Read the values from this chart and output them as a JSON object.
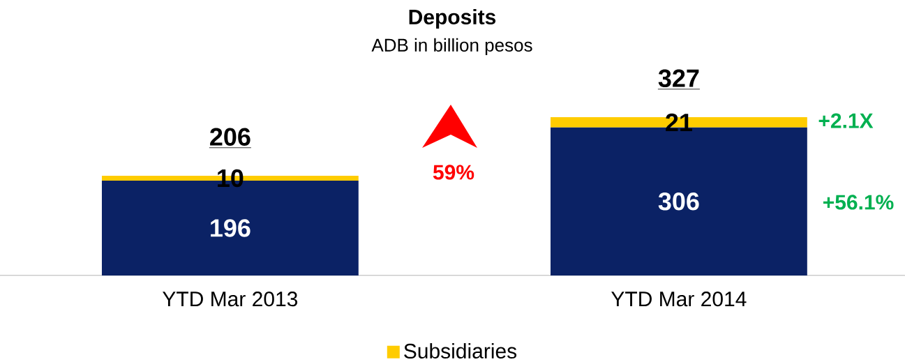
{
  "chart_data": {
    "type": "bar",
    "stacked": true,
    "title": "Deposits",
    "subtitle": "ADB in billion pesos",
    "categories": [
      "YTD Mar 2013",
      "YTD Mar 2014"
    ],
    "series": [
      {
        "color": "#0b2265",
        "values": [
          196,
          306
        ]
      },
      {
        "name": "Subsidiaries",
        "color": "#ffcc00",
        "values": [
          10,
          21
        ]
      }
    ],
    "data_labels": true,
    "totals": [
      "206",
      "327"
    ],
    "annotations": [
      "59%",
      "+2.1X",
      "+56.1%"
    ],
    "legend": "bottom"
  }
}
